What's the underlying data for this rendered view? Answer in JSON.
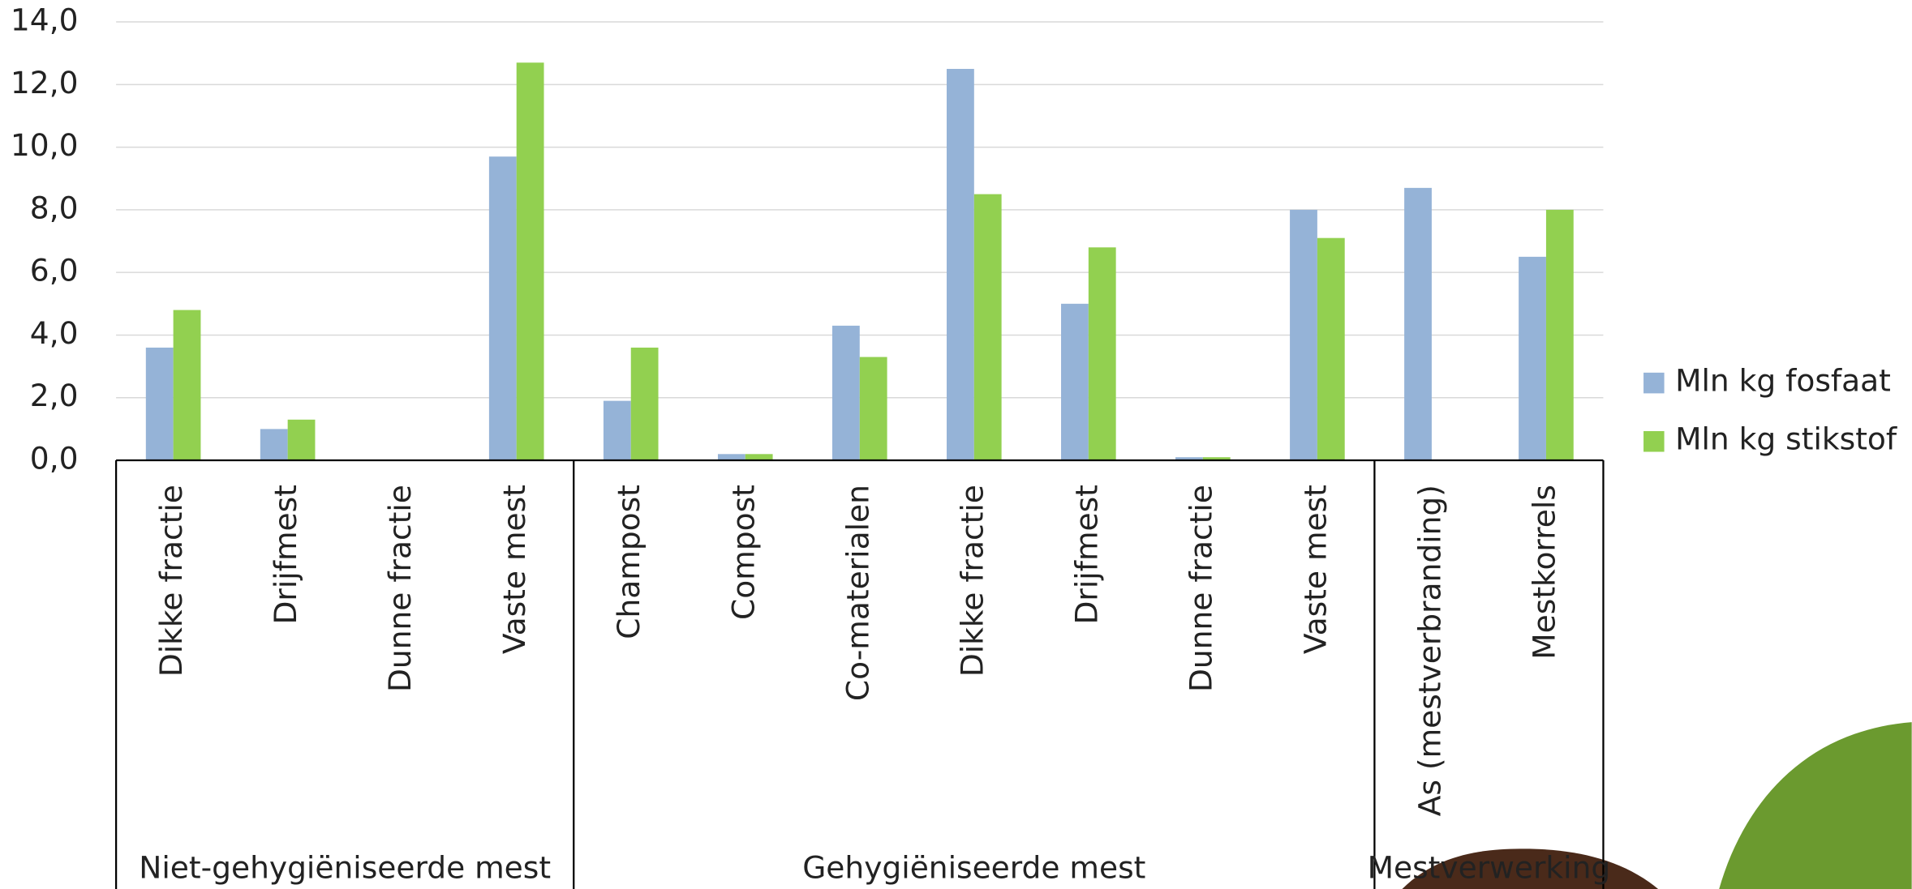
{
  "chart_data": {
    "type": "bar",
    "groups": [
      {
        "name": "Niet-gehygiëniseerde mest",
        "categories": [
          "Dikke fractie",
          "Drijfmest",
          "Dunne fractie",
          "Vaste mest"
        ]
      },
      {
        "name": "Gehygiëniseerde mest",
        "categories": [
          "Champost",
          "Compost",
          "Co-materialen",
          "Dikke fractie",
          "Drijfmest",
          "Dunne fractie",
          "Vaste mest"
        ]
      },
      {
        "name": "Mestverwerking",
        "categories": [
          "As (mestverbranding)",
          "Mestkorrels"
        ]
      }
    ],
    "series": [
      {
        "name": "Mln kg fosfaat",
        "color": "#95b3d7",
        "values": [
          3.6,
          1.0,
          0,
          9.7,
          1.9,
          0.2,
          4.3,
          12.5,
          5.0,
          0.1,
          8.0,
          8.7,
          6.5
        ]
      },
      {
        "name": "Mln kg stikstof",
        "color": "#92d050",
        "values": [
          4.8,
          1.3,
          0,
          12.7,
          3.6,
          0.2,
          3.3,
          8.5,
          6.8,
          0.1,
          7.1,
          0,
          8.0
        ]
      }
    ],
    "ylim": [
      0,
      14
    ],
    "yticks": [
      {
        "value": 0,
        "label": "0,0"
      },
      {
        "value": 2,
        "label": "2,0"
      },
      {
        "value": 4,
        "label": "4,0"
      },
      {
        "value": 6,
        "label": "6,0"
      },
      {
        "value": 8,
        "label": "8,0"
      },
      {
        "value": 10,
        "label": "10,0"
      },
      {
        "value": 12,
        "label": "12,0"
      },
      {
        "value": 14,
        "label": "14,0"
      }
    ],
    "grid": true,
    "legend": "right"
  }
}
